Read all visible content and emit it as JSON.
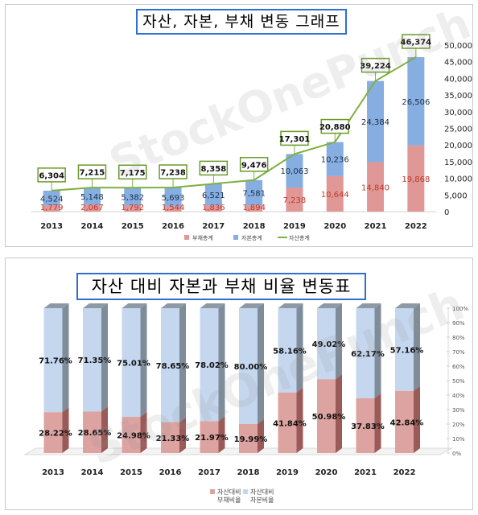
{
  "chart_data": [
    {
      "type": "bar",
      "title": "자산, 자본, 부채 변동 그래프",
      "categories": [
        "2013",
        "2014",
        "2015",
        "2016",
        "2017",
        "2018",
        "2019",
        "2020",
        "2021",
        "2022"
      ],
      "stacked": true,
      "series": [
        {
          "name": "부채총계",
          "type": "bar",
          "color": "#e09896",
          "values": [
            1779,
            2067,
            1792,
            1544,
            1836,
            1894,
            7238,
            10644,
            14840,
            19868
          ]
        },
        {
          "name": "자본총계",
          "type": "bar",
          "color": "#86aee0",
          "values": [
            4524,
            5148,
            5382,
            5693,
            6521,
            7581,
            10063,
            10236,
            24384,
            26506
          ]
        },
        {
          "name": "자산총계",
          "type": "line",
          "color": "#7fb040",
          "values": [
            6304,
            7215,
            7175,
            7238,
            8358,
            9476,
            17301,
            20880,
            39224,
            46374
          ]
        }
      ],
      "y_ticks": [
        "0",
        "5,000",
        "10,000",
        "15,000",
        "20,000",
        "25,000",
        "30,000",
        "35,000",
        "40,000",
        "45,000",
        "50,000"
      ],
      "ylim": [
        0,
        50000
      ],
      "ylabel": "",
      "xlabel": "",
      "legend_position": "bottom",
      "watermark": "StockOnePunch"
    },
    {
      "type": "bar",
      "title": "자산 대비 자본과 부채 비율 변동표",
      "categories": [
        "2013",
        "2014",
        "2015",
        "2016",
        "2017",
        "2018",
        "2019",
        "2020",
        "2021",
        "2022"
      ],
      "stacked": true,
      "percent": true,
      "series": [
        {
          "name": "자산대비\n부채비율",
          "color": "#dca3a1",
          "values": [
            28.22,
            28.65,
            24.98,
            21.33,
            21.97,
            19.99,
            41.84,
            50.98,
            37.83,
            42.84
          ]
        },
        {
          "name": "자산대비\n자본비율",
          "color": "#c5d7ef",
          "values": [
            71.76,
            71.35,
            75.01,
            78.65,
            78.02,
            80.0,
            58.16,
            49.02,
            62.17,
            57.16
          ]
        }
      ],
      "y_ticks": [
        "0%",
        "10%",
        "20%",
        "30%",
        "40%",
        "50%",
        "60%",
        "70%",
        "80%",
        "90%",
        "100%"
      ],
      "ylim": [
        0,
        100
      ],
      "ylabel": "",
      "xlabel": "",
      "legend_position": "bottom",
      "watermark": "StockOnePunch"
    }
  ]
}
